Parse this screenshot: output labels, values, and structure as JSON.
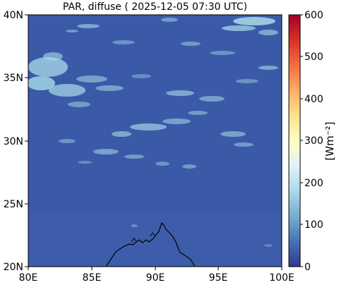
{
  "title": "PAR, diffuse ( 2025-12-05 07:30 UTC)",
  "map": {
    "lon_ticks": [
      "80E",
      "85E",
      "90E",
      "95E",
      "100E"
    ],
    "lat_ticks": [
      "40N",
      "35N",
      "30N",
      "25N",
      "20N"
    ],
    "lon_range": [
      80,
      100
    ],
    "lat_range": [
      20,
      40
    ],
    "background_color": "#3a5aa8",
    "cloud_color": "#a9dbe8",
    "coastline_color": "#000000"
  },
  "colorbar": {
    "label": "[Wm⁻²]",
    "ticks": [
      "600",
      "500",
      "400",
      "300",
      "200",
      "100",
      "0"
    ],
    "range": [
      0,
      600
    ],
    "colormap": "RdYlBu_r",
    "stops": [
      "#313695",
      "#4575b4",
      "#74add1",
      "#abd9e9",
      "#e0f3f8",
      "#ffffbf",
      "#fee090",
      "#fdae61",
      "#f46d43",
      "#d73027",
      "#a50026"
    ]
  }
}
